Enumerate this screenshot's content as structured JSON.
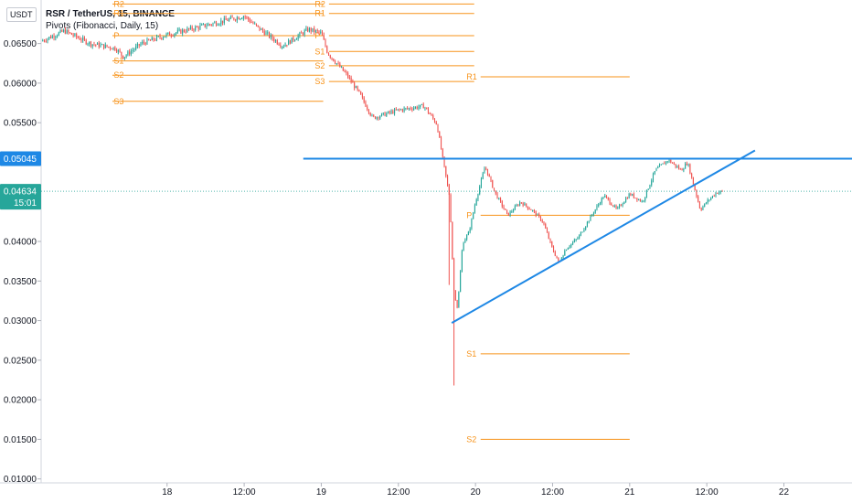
{
  "header": {
    "currency": "USDT",
    "symbol_title": "RSR / TetherUS, 15, BINANCE",
    "indicator": "Pivots (Fibonacci, Daily, 15)"
  },
  "colors": {
    "up": "#26a69a",
    "down": "#ef5350",
    "pivot": "#f7931a",
    "drawing": "#1e88e5",
    "price_tag": "#26a69a",
    "resistance_tag": "#1e88e5"
  },
  "chart_data": {
    "type": "candlestick",
    "symbol": "RSR / TetherUS",
    "interval": "15",
    "exchange": "BINANCE",
    "ylim": [
      0.0095,
      0.0705
    ],
    "y_ticks": [
      "0.06500",
      "0.06000",
      "0.05500",
      "0.05000",
      "0.04000",
      "0.03500",
      "0.03000",
      "0.02500",
      "0.02000",
      "0.01500",
      "0.01000"
    ],
    "x_range_hours": [
      -19.6,
      106.6
    ],
    "x_ticks": [
      {
        "label": "18",
        "hour": 0
      },
      {
        "label": "12:00",
        "hour": 12
      },
      {
        "label": "19",
        "hour": 24
      },
      {
        "label": "12:00",
        "hour": 36
      },
      {
        "label": "20",
        "hour": 48
      },
      {
        "label": "12:00",
        "hour": 60
      },
      {
        "label": "21",
        "hour": 72
      },
      {
        "label": "12:00",
        "hour": 84
      },
      {
        "label": "22",
        "hour": 96
      }
    ],
    "price_path": [
      [
        -19.6,
        0.0653
      ],
      [
        -16,
        0.0666
      ],
      [
        -12,
        0.065
      ],
      [
        -8,
        0.0644
      ],
      [
        -6.8,
        0.0633
      ],
      [
        -4,
        0.065
      ],
      [
        0,
        0.0661
      ],
      [
        6,
        0.0673
      ],
      [
        12,
        0.0685
      ],
      [
        14,
        0.0671
      ],
      [
        18,
        0.0647
      ],
      [
        22,
        0.0668
      ],
      [
        24,
        0.0663
      ],
      [
        25,
        0.0638
      ],
      [
        28,
        0.061
      ],
      [
        30,
        0.0586
      ],
      [
        32,
        0.0556
      ],
      [
        36,
        0.0566
      ],
      [
        40,
        0.0571
      ],
      [
        42,
        0.0548
      ],
      [
        43,
        0.05
      ],
      [
        44,
        0.0455
      ],
      [
        44.6,
        0.034
      ],
      [
        45.2,
        0.0315
      ],
      [
        46,
        0.0398
      ],
      [
        47,
        0.0412
      ],
      [
        48,
        0.045
      ],
      [
        49.5,
        0.0495
      ],
      [
        51,
        0.0462
      ],
      [
        53,
        0.0433
      ],
      [
        55,
        0.045
      ],
      [
        57,
        0.0438
      ],
      [
        58.5,
        0.0425
      ],
      [
        60,
        0.039
      ],
      [
        61,
        0.0373
      ],
      [
        62,
        0.039
      ],
      [
        64,
        0.0405
      ],
      [
        66,
        0.0432
      ],
      [
        68,
        0.0458
      ],
      [
        70,
        0.044
      ],
      [
        72,
        0.046
      ],
      [
        74,
        0.045
      ],
      [
        76,
        0.049
      ],
      [
        78,
        0.0503
      ],
      [
        80,
        0.049
      ],
      [
        81,
        0.05
      ],
      [
        82,
        0.047
      ],
      [
        83,
        0.044
      ],
      [
        84,
        0.045
      ],
      [
        85.5,
        0.0462
      ],
      [
        86.6,
        0.0463
      ]
    ],
    "pivot_levels": [
      {
        "label": "R2",
        "day": 0,
        "value": 0.07
      },
      {
        "label": "R1",
        "day": 0,
        "value": 0.0688
      },
      {
        "label": "P",
        "day": 0,
        "value": 0.066
      },
      {
        "label": "S1",
        "day": 0,
        "value": 0.0628
      },
      {
        "label": "S2",
        "day": 0,
        "value": 0.061
      },
      {
        "label": "S3",
        "day": 0,
        "value": 0.0577
      },
      {
        "label": "R2",
        "day": 1,
        "value": 0.07
      },
      {
        "label": "R1",
        "day": 1,
        "value": 0.0688
      },
      {
        "label": "P",
        "day": 1,
        "value": 0.066
      },
      {
        "label": "S1",
        "day": 1,
        "value": 0.064
      },
      {
        "label": "S2",
        "day": 1,
        "value": 0.0622
      },
      {
        "label": "S3",
        "day": 1,
        "value": 0.0602
      },
      {
        "label": "R1",
        "day": 2,
        "value": 0.0608
      },
      {
        "label": "P",
        "day": 2,
        "value": 0.0433
      },
      {
        "label": "S1",
        "day": 2,
        "value": 0.0258
      },
      {
        "label": "S2",
        "day": 2,
        "value": 0.015
      }
    ],
    "resistance_line": {
      "value": 0.05045
    },
    "trend_line": {
      "start": [
        44.3,
        0.0297
      ],
      "end": [
        91.5,
        0.0515
      ]
    },
    "last_price": {
      "value": 0.04634,
      "label": "0.04634",
      "countdown": "15:01"
    },
    "resistance_label": "0.05045"
  }
}
